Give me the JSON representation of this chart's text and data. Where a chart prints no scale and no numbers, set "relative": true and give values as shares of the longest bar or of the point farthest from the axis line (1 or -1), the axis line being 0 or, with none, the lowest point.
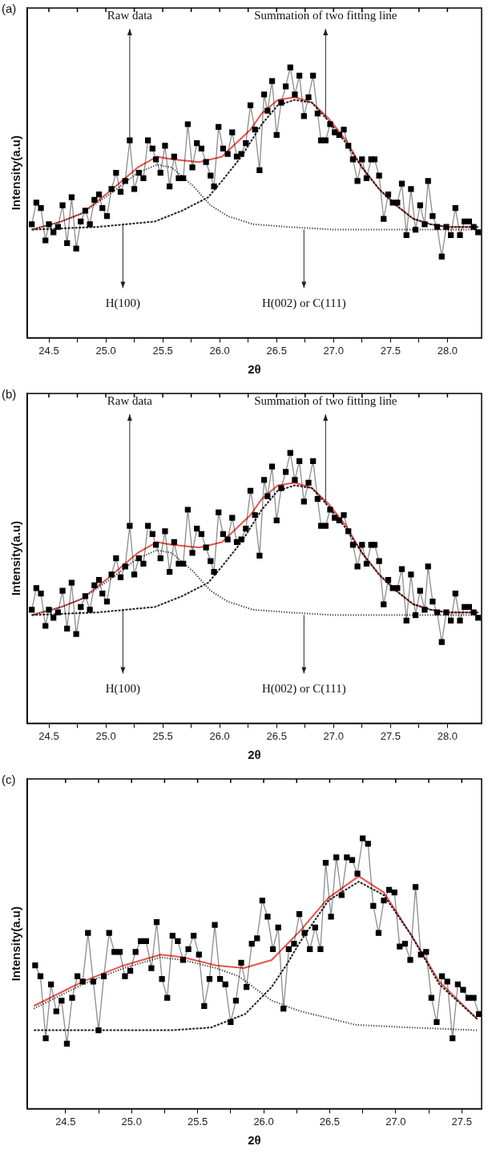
{
  "chart_data": [
    {
      "type": "line",
      "title": "(a)",
      "xlabel": "2θ",
      "ylabel": "Intensity(a.u)",
      "relative": true,
      "xlim": [
        24.31,
        28.3
      ],
      "xticks": [
        {
          "value": 24.5,
          "label": "24.5"
        },
        {
          "value": 24.75,
          "label": null
        },
        {
          "value": 25,
          "label": "25.0"
        },
        {
          "value": 25.25,
          "label": null
        },
        {
          "value": 25.5,
          "label": "25.5"
        },
        {
          "value": 25.75,
          "label": null
        },
        {
          "value": 26,
          "label": "26.0"
        },
        {
          "value": 26.25,
          "label": null
        },
        {
          "value": 26.5,
          "label": "26.5"
        },
        {
          "value": 26.75,
          "label": null
        },
        {
          "value": 27,
          "label": "27.0"
        },
        {
          "value": 27.25,
          "label": null
        },
        {
          "value": 27.5,
          "label": "27.5"
        },
        {
          "value": 27.75,
          "label": null
        },
        {
          "value": 28,
          "label": "28.0"
        }
      ],
      "x": [
        24.35,
        24.39,
        24.43,
        24.47,
        24.5,
        24.54,
        24.58,
        24.62,
        24.66,
        24.7,
        24.74,
        24.78,
        24.82,
        24.86,
        24.9,
        24.94,
        24.97,
        25.01,
        25.05,
        25.09,
        25.13,
        25.17,
        25.21,
        25.25,
        25.29,
        25.33,
        25.37,
        25.41,
        25.44,
        25.48,
        25.52,
        25.56,
        25.6,
        25.64,
        25.68,
        25.72,
        25.76,
        25.8,
        25.84,
        25.88,
        25.92,
        25.95,
        25.99,
        26.03,
        26.07,
        26.11,
        26.15,
        26.19,
        26.23,
        26.27,
        26.31,
        26.35,
        26.39,
        26.42,
        26.46,
        26.5,
        26.54,
        26.58,
        26.62,
        26.66,
        26.7,
        26.74,
        26.78,
        26.82,
        26.86,
        26.89,
        26.93,
        26.97,
        27.01,
        27.05,
        27.09,
        27.13,
        27.17,
        27.21,
        27.25,
        27.29,
        27.33,
        27.36,
        27.4,
        27.44,
        27.48,
        27.52,
        27.56,
        27.6,
        27.64,
        27.68,
        27.72,
        27.76,
        27.8,
        27.83,
        27.87,
        27.91,
        27.95,
        27.99,
        28.03,
        28.07,
        28.11,
        28.15,
        28.19,
        28.23,
        28.27
      ],
      "series": [
        {
          "color": "#000000",
          "marker": "square",
          "line_style": "solid",
          "values": [
            0.42,
            0.5,
            0.48,
            0.36,
            0.42,
            0.39,
            0.41,
            0.49,
            0.35,
            0.52,
            0.33,
            0.43,
            0.47,
            0.42,
            0.51,
            0.53,
            0.48,
            0.45,
            0.55,
            0.61,
            0.54,
            0.58,
            0.73,
            0.55,
            0.61,
            0.59,
            0.73,
            0.7,
            0.66,
            0.61,
            0.71,
            0.56,
            0.67,
            0.59,
            0.59,
            0.79,
            0.63,
            0.72,
            0.7,
            0.65,
            0.6,
            0.56,
            0.78,
            0.7,
            0.68,
            0.76,
            0.67,
            0.68,
            0.72,
            0.86,
            0.77,
            0.62,
            0.9,
            0.84,
            0.95,
            0.75,
            0.87,
            0.93,
            1.0,
            0.9,
            0.97,
            0.82,
            0.89,
            0.97,
            0.83,
            0.73,
            0.73,
            0.79,
            0.76,
            0.75,
            0.77,
            0.71,
            0.66,
            0.58,
            0.66,
            0.59,
            0.66,
            0.66,
            0.6,
            0.44,
            0.53,
            0.5,
            0.5,
            0.57,
            0.38,
            0.55,
            0.4,
            0.49,
            0.42,
            0.58,
            0.45,
            0.41,
            0.3,
            0.41,
            0.38,
            0.48,
            0.38,
            0.43,
            0.43,
            0.41,
            0.39
          ]
        },
        {
          "color": "#e8524a",
          "marker": "none",
          "line_style": "solid",
          "x": [
            24.35,
            24.61,
            24.79,
            25.03,
            25.28,
            25.45,
            25.58,
            25.82,
            26.02,
            26.27,
            26.37,
            26.51,
            26.66,
            26.81,
            26.96,
            27.11,
            27.25,
            27.4,
            27.55,
            27.7,
            27.85,
            27.99,
            28.27
          ],
          "values": [
            0.4,
            0.43,
            0.46,
            0.54,
            0.63,
            0.67,
            0.66,
            0.65,
            0.67,
            0.77,
            0.83,
            0.88,
            0.89,
            0.87,
            0.81,
            0.73,
            0.63,
            0.55,
            0.49,
            0.44,
            0.42,
            0.41,
            0.41
          ]
        },
        {
          "color": "#333333",
          "marker": "none",
          "line_style": "dotted",
          "x": [
            24.35,
            24.61,
            24.79,
            25.03,
            25.28,
            25.45,
            25.58,
            25.77,
            25.92,
            26.07,
            26.29,
            26.6,
            27.0,
            28.27
          ],
          "values": [
            0.4,
            0.43,
            0.46,
            0.53,
            0.61,
            0.64,
            0.63,
            0.56,
            0.49,
            0.45,
            0.42,
            0.41,
            0.4,
            0.4
          ]
        },
        {
          "color": "#222222",
          "marker": "none",
          "line_style": "dashed",
          "x": [
            24.35,
            24.93,
            25.43,
            25.67,
            25.9,
            26.02,
            26.19,
            26.37,
            26.51,
            26.66,
            26.81,
            26.96,
            27.11,
            27.25,
            27.4,
            27.55,
            27.7,
            27.85,
            27.99,
            28.27
          ],
          "values": [
            0.4,
            0.41,
            0.43,
            0.47,
            0.52,
            0.58,
            0.67,
            0.79,
            0.86,
            0.88,
            0.87,
            0.8,
            0.72,
            0.63,
            0.55,
            0.49,
            0.44,
            0.42,
            0.41,
            0.41
          ]
        }
      ],
      "annotations": [
        {
          "text": "Raw data",
          "x": 25.21,
          "y": 0.73
        },
        {
          "text": "Summation of two fitting line",
          "x": 26.93,
          "y": 0.81
        },
        {
          "text": "H(100)",
          "x": 25.15,
          "y": 0.42
        },
        {
          "text": "H(002) or C(111)",
          "x": 26.74,
          "y": 0.4
        }
      ]
    },
    {
      "type": "line",
      "title": "(b)",
      "xlabel": "2θ",
      "ylabel": "Intensity(a.u)",
      "relative": true,
      "xlim": [
        24.31,
        28.3
      ],
      "xticks": [
        {
          "value": 24.5,
          "label": "24.5"
        },
        {
          "value": 24.75,
          "label": null
        },
        {
          "value": 25,
          "label": "25.0"
        },
        {
          "value": 25.25,
          "label": null
        },
        {
          "value": 25.5,
          "label": "25.5"
        },
        {
          "value": 25.75,
          "label": null
        },
        {
          "value": 26,
          "label": "26.0"
        },
        {
          "value": 26.25,
          "label": null
        },
        {
          "value": 26.5,
          "label": "26.5"
        },
        {
          "value": 26.75,
          "label": null
        },
        {
          "value": 27,
          "label": "27.0"
        },
        {
          "value": 27.25,
          "label": null
        },
        {
          "value": 27.5,
          "label": "27.5"
        },
        {
          "value": 27.75,
          "label": null
        },
        {
          "value": 28,
          "label": "28.0"
        }
      ],
      "x": [
        24.35,
        24.39,
        24.43,
        24.47,
        24.5,
        24.54,
        24.58,
        24.62,
        24.66,
        24.7,
        24.74,
        24.78,
        24.82,
        24.86,
        24.9,
        24.94,
        24.97,
        25.01,
        25.05,
        25.09,
        25.13,
        25.17,
        25.21,
        25.25,
        25.29,
        25.33,
        25.37,
        25.41,
        25.44,
        25.48,
        25.52,
        25.56,
        25.6,
        25.64,
        25.68,
        25.72,
        25.76,
        25.8,
        25.84,
        25.88,
        25.92,
        25.95,
        25.99,
        26.03,
        26.07,
        26.11,
        26.15,
        26.19,
        26.23,
        26.27,
        26.31,
        26.35,
        26.39,
        26.42,
        26.46,
        26.5,
        26.54,
        26.58,
        26.62,
        26.66,
        26.7,
        26.74,
        26.78,
        26.82,
        26.86,
        26.89,
        26.93,
        26.97,
        27.01,
        27.05,
        27.09,
        27.13,
        27.17,
        27.21,
        27.25,
        27.29,
        27.33,
        27.36,
        27.4,
        27.44,
        27.48,
        27.52,
        27.56,
        27.6,
        27.64,
        27.68,
        27.72,
        27.76,
        27.8,
        27.83,
        27.87,
        27.91,
        27.95,
        27.99,
        28.03,
        28.07,
        28.11,
        28.15,
        28.19,
        28.23,
        28.27
      ],
      "series": [
        {
          "color": "#000000",
          "marker": "square",
          "line_style": "solid",
          "values": [
            0.42,
            0.5,
            0.48,
            0.36,
            0.42,
            0.39,
            0.41,
            0.49,
            0.35,
            0.52,
            0.33,
            0.43,
            0.47,
            0.42,
            0.51,
            0.53,
            0.48,
            0.45,
            0.55,
            0.61,
            0.54,
            0.58,
            0.73,
            0.55,
            0.61,
            0.59,
            0.73,
            0.7,
            0.66,
            0.61,
            0.71,
            0.56,
            0.67,
            0.59,
            0.59,
            0.79,
            0.63,
            0.72,
            0.7,
            0.65,
            0.6,
            0.56,
            0.78,
            0.7,
            0.68,
            0.76,
            0.67,
            0.68,
            0.72,
            0.86,
            0.77,
            0.62,
            0.9,
            0.84,
            0.95,
            0.75,
            0.87,
            0.93,
            1.0,
            0.9,
            0.97,
            0.82,
            0.89,
            0.97,
            0.83,
            0.73,
            0.73,
            0.79,
            0.76,
            0.75,
            0.77,
            0.71,
            0.66,
            0.58,
            0.66,
            0.59,
            0.66,
            0.66,
            0.6,
            0.44,
            0.53,
            0.5,
            0.5,
            0.57,
            0.38,
            0.55,
            0.4,
            0.49,
            0.42,
            0.58,
            0.45,
            0.41,
            0.3,
            0.41,
            0.38,
            0.48,
            0.38,
            0.43,
            0.43,
            0.41,
            0.39
          ]
        },
        {
          "color": "#e8524a",
          "marker": "none",
          "line_style": "solid",
          "x": [
            24.35,
            24.61,
            24.79,
            25.03,
            25.28,
            25.45,
            25.58,
            25.82,
            26.02,
            26.27,
            26.37,
            26.51,
            26.66,
            26.81,
            26.96,
            27.11,
            27.25,
            27.4,
            27.55,
            27.7,
            27.85,
            27.99,
            28.27
          ],
          "values": [
            0.4,
            0.43,
            0.46,
            0.54,
            0.63,
            0.67,
            0.66,
            0.65,
            0.67,
            0.77,
            0.83,
            0.88,
            0.89,
            0.87,
            0.81,
            0.73,
            0.63,
            0.55,
            0.49,
            0.44,
            0.42,
            0.41,
            0.41
          ]
        },
        {
          "color": "#333333",
          "marker": "none",
          "line_style": "dotted",
          "x": [
            24.35,
            24.61,
            24.79,
            25.03,
            25.28,
            25.45,
            25.58,
            25.77,
            25.92,
            26.07,
            26.29,
            26.6,
            27.0,
            28.27
          ],
          "values": [
            0.4,
            0.43,
            0.46,
            0.53,
            0.61,
            0.64,
            0.63,
            0.56,
            0.49,
            0.45,
            0.42,
            0.41,
            0.4,
            0.4
          ]
        },
        {
          "color": "#222222",
          "marker": "none",
          "line_style": "dashed",
          "x": [
            24.35,
            24.93,
            25.43,
            25.67,
            25.9,
            26.02,
            26.19,
            26.37,
            26.51,
            26.66,
            26.81,
            26.96,
            27.11,
            27.25,
            27.4,
            27.55,
            27.7,
            27.85,
            27.99,
            28.27
          ],
          "values": [
            0.4,
            0.41,
            0.43,
            0.47,
            0.52,
            0.58,
            0.67,
            0.79,
            0.86,
            0.88,
            0.87,
            0.8,
            0.72,
            0.63,
            0.55,
            0.49,
            0.44,
            0.42,
            0.41,
            0.41
          ]
        }
      ],
      "annotations": [
        {
          "text": "Raw data",
          "x": 25.21,
          "y": 0.73
        },
        {
          "text": "Summation of two fitting line",
          "x": 26.93,
          "y": 0.81
        },
        {
          "text": "H(100)",
          "x": 25.15,
          "y": 0.42
        },
        {
          "text": "H(002) or C(111)",
          "x": 26.74,
          "y": 0.4
        }
      ]
    },
    {
      "type": "line",
      "title": "(c)",
      "xlabel": "2θ",
      "ylabel": "Intensity(a.u)",
      "relative": true,
      "xlim": [
        24.21,
        27.65
      ],
      "xticks": [
        {
          "value": 24.5,
          "label": "24.5"
        },
        {
          "value": 24.75,
          "label": null
        },
        {
          "value": 25,
          "label": "25.0"
        },
        {
          "value": 25.25,
          "label": null
        },
        {
          "value": 25.5,
          "label": "25.5"
        },
        {
          "value": 25.75,
          "label": null
        },
        {
          "value": 26,
          "label": "26.0"
        },
        {
          "value": 26.25,
          "label": null
        },
        {
          "value": 26.5,
          "label": "26.5"
        },
        {
          "value": 26.75,
          "label": null
        },
        {
          "value": 27,
          "label": "27.0"
        },
        {
          "value": 27.25,
          "label": null
        },
        {
          "value": 27.5,
          "label": "27.5"
        }
      ],
      "x": [
        24.27,
        24.31,
        24.35,
        24.39,
        24.43,
        24.47,
        24.51,
        24.55,
        24.59,
        24.63,
        24.67,
        24.71,
        24.75,
        24.79,
        24.83,
        24.87,
        24.91,
        24.95,
        24.99,
        25.03,
        25.07,
        25.11,
        25.15,
        25.19,
        25.23,
        25.27,
        25.31,
        25.35,
        25.39,
        25.43,
        25.47,
        25.51,
        25.55,
        25.59,
        25.63,
        25.67,
        25.71,
        25.75,
        25.79,
        25.83,
        25.87,
        25.91,
        25.95,
        25.99,
        26.03,
        26.07,
        26.11,
        26.15,
        26.19,
        26.23,
        26.27,
        26.31,
        26.35,
        26.39,
        26.43,
        26.47,
        26.51,
        26.55,
        26.59,
        26.63,
        26.67,
        26.71,
        26.75,
        26.79,
        26.83,
        26.87,
        26.91,
        26.95,
        26.99,
        27.03,
        27.07,
        27.11,
        27.15,
        27.19,
        27.23,
        27.27,
        27.31,
        27.35,
        27.39,
        27.43,
        27.47,
        27.51,
        27.55,
        27.59,
        27.63
      ],
      "series": [
        {
          "color": "#000000",
          "marker": "square",
          "line_style": "solid",
          "values": [
            0.53,
            0.49,
            0.26,
            0.46,
            0.36,
            0.4,
            0.24,
            0.41,
            0.49,
            0.47,
            0.65,
            0.47,
            0.29,
            0.49,
            0.65,
            0.58,
            0.58,
            0.49,
            0.51,
            0.58,
            0.62,
            0.62,
            0.52,
            0.69,
            0.48,
            0.41,
            0.64,
            0.62,
            0.55,
            0.59,
            0.64,
            0.57,
            0.38,
            0.48,
            0.68,
            0.48,
            0.46,
            0.32,
            0.4,
            0.54,
            0.45,
            0.61,
            0.63,
            0.77,
            0.71,
            0.59,
            0.67,
            0.37,
            0.59,
            0.61,
            0.72,
            0.65,
            0.59,
            0.67,
            0.59,
            0.91,
            0.71,
            0.93,
            0.79,
            0.93,
            0.92,
            0.87,
            1.0,
            0.98,
            0.75,
            0.65,
            0.77,
            0.81,
            0.8,
            0.6,
            0.61,
            0.55,
            0.82,
            0.57,
            0.58,
            0.41,
            0.32,
            0.49,
            0.47,
            0.26,
            0.46,
            0.44,
            0.41,
            0.41,
            0.35
          ]
        },
        {
          "color": "#e8524a",
          "marker": "none",
          "line_style": "solid",
          "x": [
            24.26,
            24.63,
            24.94,
            25.22,
            25.39,
            25.64,
            25.85,
            26.06,
            26.28,
            26.49,
            26.72,
            26.91,
            27.12,
            27.33,
            27.62
          ],
          "values": [
            0.38,
            0.47,
            0.53,
            0.57,
            0.56,
            0.53,
            0.52,
            0.55,
            0.66,
            0.78,
            0.86,
            0.8,
            0.64,
            0.47,
            0.33
          ]
        },
        {
          "color": "#333333",
          "marker": "none",
          "line_style": "dotted",
          "x": [
            24.26,
            24.63,
            24.94,
            25.22,
            25.39,
            25.64,
            25.81,
            26.06,
            26.28,
            26.7,
            27.12,
            27.62
          ],
          "values": [
            0.37,
            0.46,
            0.52,
            0.56,
            0.55,
            0.52,
            0.49,
            0.4,
            0.36,
            0.31,
            0.3,
            0.29
          ]
        },
        {
          "color": "#222222",
          "marker": "none",
          "line_style": "dashed",
          "x": [
            24.26,
            25.3,
            25.6,
            25.86,
            26.06,
            26.17,
            26.28,
            26.49,
            26.72,
            26.91,
            27.12,
            27.33,
            27.62
          ],
          "values": [
            0.29,
            0.29,
            0.3,
            0.35,
            0.45,
            0.53,
            0.62,
            0.77,
            0.84,
            0.79,
            0.64,
            0.46,
            0.33
          ]
        }
      ]
    }
  ]
}
